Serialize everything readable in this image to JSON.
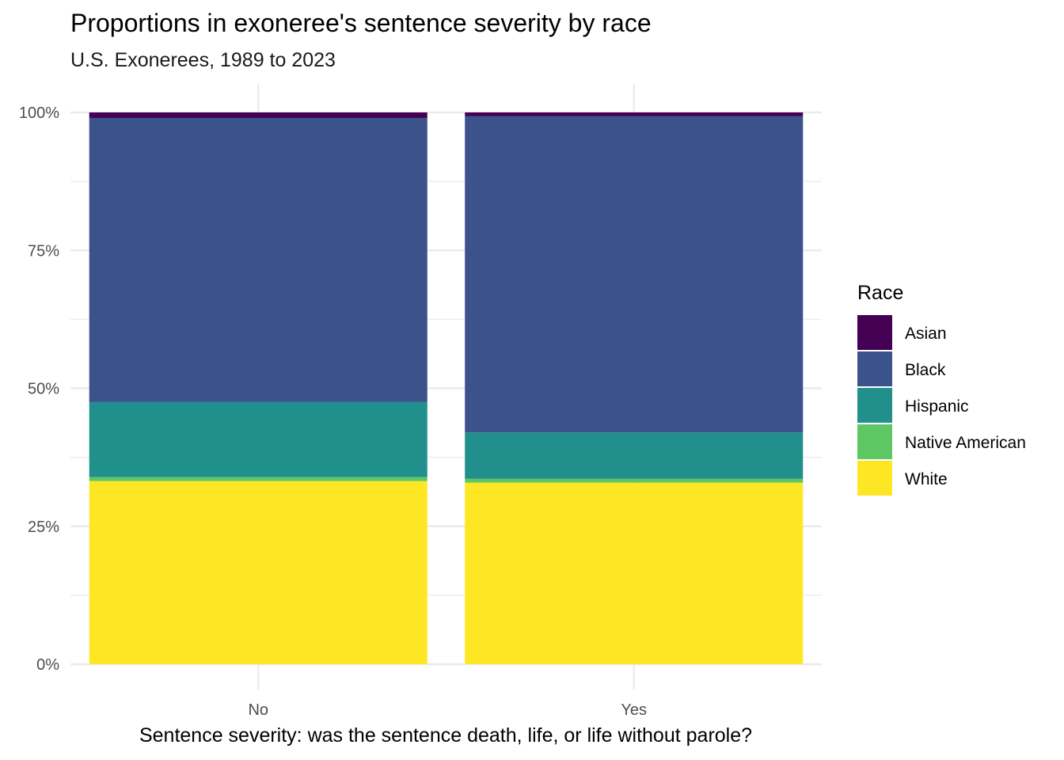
{
  "chart_data": {
    "type": "bar",
    "stacked": true,
    "normalized": true,
    "title": "Proportions in exoneree's sentence severity by race",
    "subtitle": "U.S. Exonerees, 1989 to 2023",
    "xlabel": "Sentence severity: was the sentence death, life, or life without parole?",
    "ylabel": "",
    "ylim": [
      0,
      1
    ],
    "y_ticks": [
      0,
      0.25,
      0.5,
      0.75,
      1.0
    ],
    "y_tick_labels": [
      "0%",
      "25%",
      "50%",
      "75%",
      "100%"
    ],
    "categories": [
      "No",
      "Yes"
    ],
    "grid": true,
    "legend": {
      "title": "Race",
      "position": "right"
    },
    "series": [
      {
        "name": "Asian",
        "color": "#440154",
        "values": [
          0.01,
          0.007
        ]
      },
      {
        "name": "Black",
        "color": "#3B528B",
        "values": [
          0.515,
          0.573
        ]
      },
      {
        "name": "Hispanic",
        "color": "#21908C",
        "values": [
          0.136,
          0.084
        ]
      },
      {
        "name": "Native American",
        "color": "#5DC863",
        "values": [
          0.007,
          0.007
        ]
      },
      {
        "name": "White",
        "color": "#FDE725",
        "values": [
          0.332,
          0.329
        ]
      }
    ]
  }
}
